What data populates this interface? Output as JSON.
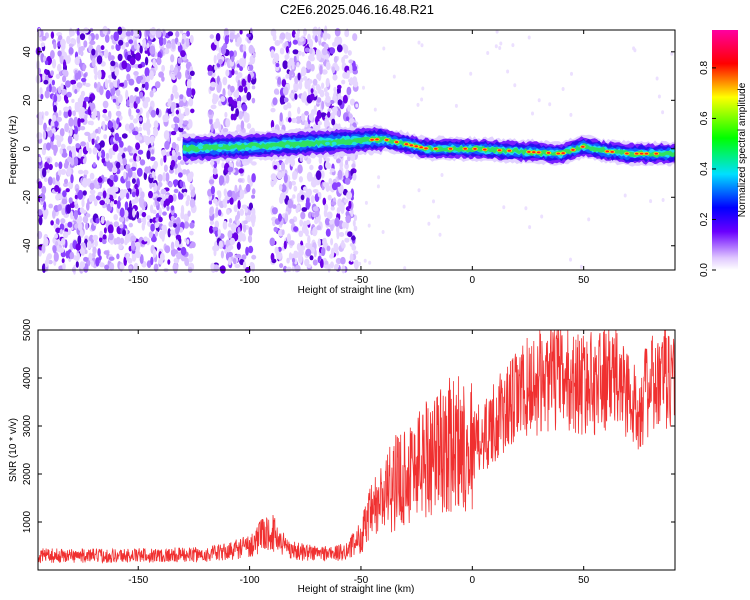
{
  "title": "C2E6.2025.046.16.48.R21",
  "chart_data": [
    {
      "type": "heatmap",
      "xlabel": "Height of straight line (km)",
      "ylabel": "Frequency (Hz)",
      "xlim": [
        -195,
        91
      ],
      "ylim": [
        -50,
        49
      ],
      "xticks": [
        -150,
        -100,
        -50,
        0,
        50
      ],
      "yticks": [
        -40,
        -20,
        0,
        20,
        40
      ],
      "colorbar": {
        "label": "Normalized spectral amplitude",
        "range": [
          0,
          0.95
        ],
        "ticks": [
          0.0,
          0.2,
          0.4,
          0.6,
          0.8
        ],
        "colormap": "rainbow (white-violet-blue-cyan-green-yellow-red-magenta)"
      },
      "features": [
        {
          "region": "noise",
          "x_range": [
            -195,
            -125
          ],
          "freq_range": [
            -50,
            49
          ]
        },
        {
          "region": "noise",
          "x_range": [
            -118,
            -98
          ],
          "freq_range": [
            -50,
            49
          ]
        },
        {
          "region": "noise",
          "x_range": [
            -90,
            -52
          ],
          "freq_range": [
            -50,
            49
          ]
        },
        {
          "region": "signal_band",
          "x_range": [
            -130,
            91
          ],
          "center_freq": [
            [
              -130,
              0
            ],
            [
              -100,
              1
            ],
            [
              -60,
              3
            ],
            [
              -40,
              4
            ],
            [
              -30,
              2
            ],
            [
              -20,
              0
            ],
            [
              0,
              0
            ],
            [
              20,
              -1
            ],
            [
              40,
              -2
            ],
            [
              50,
              1
            ],
            [
              60,
              -1
            ],
            [
              70,
              -2
            ],
            [
              91,
              -2
            ]
          ]
        }
      ]
    },
    {
      "type": "line",
      "xlabel": "Height of straight line (km)",
      "ylabel": "SNR (10 * v/v)",
      "xlim": [
        -195,
        91
      ],
      "ylim": [
        0,
        5000
      ],
      "xticks": [
        -150,
        -100,
        -50,
        0,
        50
      ],
      "yticks": [
        1000,
        2000,
        3000,
        4000,
        5000
      ],
      "series": [
        {
          "color": "#f03030",
          "x": [
            -195,
            -180,
            -160,
            -140,
            -120,
            -110,
            -105,
            -100,
            -95,
            -90,
            -85,
            -80,
            -70,
            -60,
            -55,
            -50,
            -45,
            -40,
            -35,
            -30,
            -25,
            -20,
            -15,
            -10,
            -5,
            0,
            5,
            10,
            15,
            20,
            25,
            30,
            35,
            40,
            45,
            50,
            55,
            60,
            65,
            70,
            72,
            75,
            80,
            85,
            91
          ],
          "y": [
            300,
            300,
            300,
            310,
            320,
            380,
            450,
            500,
            700,
            800,
            550,
            400,
            350,
            350,
            450,
            700,
            1200,
            1500,
            1800,
            2000,
            2200,
            2400,
            2500,
            2600,
            2700,
            2600,
            2800,
            3100,
            3300,
            3600,
            3800,
            3900,
            4000,
            4000,
            3900,
            3900,
            3900,
            4000,
            4000,
            3700,
            3300,
            3500,
            3800,
            3900,
            4100
          ]
        }
      ]
    }
  ]
}
